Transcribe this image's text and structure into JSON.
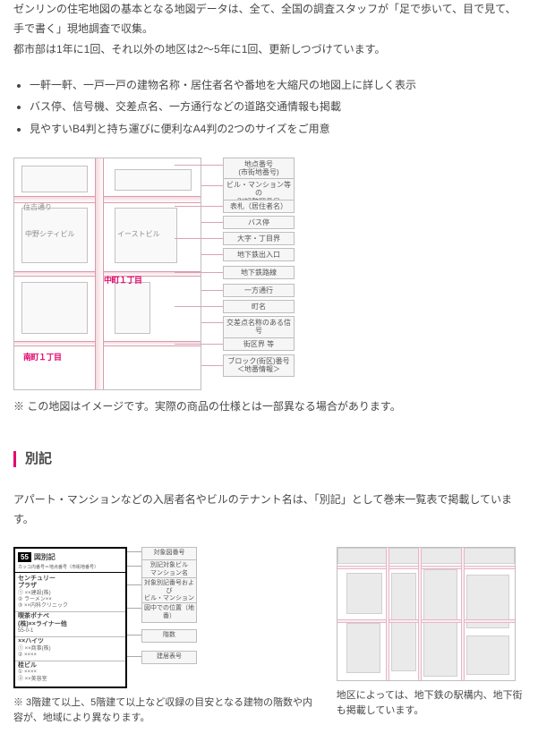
{
  "intro": {
    "p1": "ゼンリンの住宅地図の基本となる地図データは、全て、全国の調査スタッフが「足で歩いて、目で見て、手で書く」現地調査で収集。",
    "p2": "都市部は1年に1回、それ以外の地区は2〜5年に1回、更新しつづけています。"
  },
  "bullets": [
    "一軒一軒、一戸一戸の建物名称・居住者名や番地を大縮尺の地図上に詳しく表示",
    "バス停、信号機、交差点名、一方通行などの道路交通情報も掲載",
    "見やすいB4判と持ち運びに便利なA4判の2つのサイズをご用意"
  ],
  "mapSample": {
    "street": "住吉通り",
    "building1": "中野シティビル",
    "building2": "イーストビル",
    "ward1": "中町１丁目",
    "ward2": "南町１丁目"
  },
  "callouts": [
    "地点番号\n(市街地番号)",
    "ビル・マンション等の\n別記整理番号",
    "表札（居住者名）",
    "バス停",
    "大字・丁目界",
    "地下鉄出入口",
    "地下鉄路線",
    "一方通行",
    "町名",
    "交差点名称のある信号",
    "街区界 等",
    "ブロック(街区)番号\n＜地番情報＞"
  ],
  "mapNote": "※ この地図はイメージです。実際の商品の仕様とは一部異なる場合があります。",
  "section2": {
    "title": "別記",
    "lead": "アパート・マンションなどの入居者名やビルのテナント名は、「別記」として巻末一覧表で掲載しています。"
  },
  "bekkiFig": {
    "badge": "55",
    "title": "図別記",
    "sub": "カッコ内番号＝地点番号（市街地番号）",
    "blocks": [
      {
        "name": "センチュリー\nプラザ",
        "row": "① ××建設(株)\n② ラーメン××\n③ ××内科クリニック"
      },
      {
        "name": "喫茶ポナペ\n(株)××ライナー他",
        "row": "55-0-1"
      },
      {
        "name": "××ハイツ",
        "row": "① ××商事(株)\n② ××××"
      },
      {
        "name": "桂ビル",
        "row": "① ××××\n② ××美容室"
      }
    ]
  },
  "bekkiCallouts": [
    "対象図番号",
    "別記対象ビル\nマンション名",
    "対象別記番号および\nビル・マンション名",
    "図中での位置（地番）",
    "階数",
    "建居表号"
  ],
  "bekkiNoteLeft": "※ 3階建て以上、5階建て以上など収録の目安となる建物の階数や内容が、地域により異なります。",
  "bekkiNoteRight": "地区によっては、地下鉄の駅構内、地下街も掲載しています。",
  "colors": {
    "accent": "#e40a6f"
  }
}
